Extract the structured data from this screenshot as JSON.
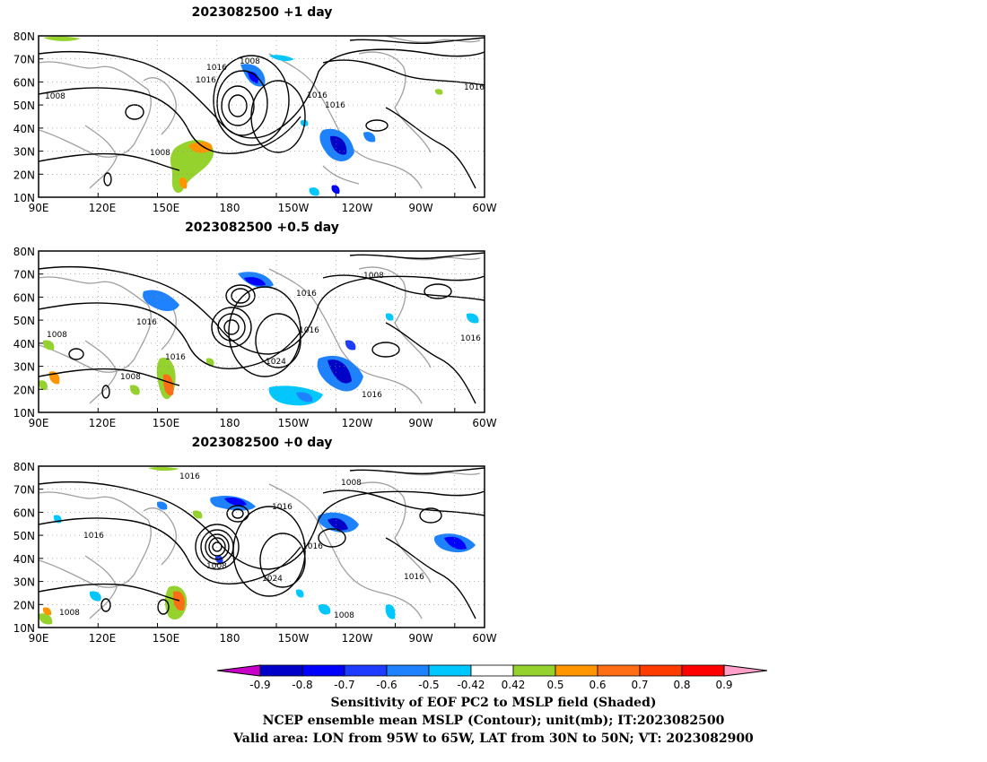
{
  "panels": [
    {
      "title": "2023082500  +1 day",
      "contour_labels": [
        "1008",
        "1016",
        "1016",
        "1008",
        "1016",
        "1016",
        "1016",
        "1008"
      ]
    },
    {
      "title": "2023082500  +0.5 day",
      "contour_labels": [
        "1008",
        "1008",
        "1016",
        "1016",
        "1016",
        "1024",
        "1016",
        "1016",
        "1008",
        "1016"
      ]
    },
    {
      "title": "2023082500  +0 day",
      "contour_labels": [
        "1016",
        "1008",
        "1016",
        "1016",
        "1008",
        "1024",
        "1016",
        "1016",
        "1008",
        "1008"
      ]
    }
  ],
  "map_axes": {
    "lat_ticks": [
      "80N",
      "70N",
      "60N",
      "50N",
      "40N",
      "30N",
      "20N",
      "10N"
    ],
    "lon_ticks": [
      "90E",
      "120E",
      "150E",
      "180",
      "150W",
      "120W",
      "90W",
      "60W"
    ],
    "lon_range": "90E to 40W",
    "lat_range": "10N to 80N",
    "contour_color": "#000000",
    "coastline_color": "#a0a0a0"
  },
  "colorbar": {
    "labels": [
      "-0.9",
      "-0.8",
      "-0.7",
      "-0.6",
      "-0.5",
      "-0.42",
      "0.42",
      "0.5",
      "0.6",
      "0.7",
      "0.8",
      "0.9"
    ],
    "colors": [
      "#c800c8",
      "#0000c8",
      "#0000ff",
      "#1e3cff",
      "#1e82ff",
      "#00c8ff",
      "#ffffff",
      "#96d22d",
      "#ff9600",
      "#ff6e14",
      "#ff3c00",
      "#ff0000",
      "#ffa0c8"
    ]
  },
  "caption": {
    "line1": "Sensitivity of EOF PC2 to MSLP field (Shaded)",
    "line2": "NCEP ensemble mean MSLP (Contour); unit(mb); IT:2023082500",
    "line3": "Valid area: LON from 95W to 65W, LAT from 30N to 50N; VT: 2023082900"
  }
}
